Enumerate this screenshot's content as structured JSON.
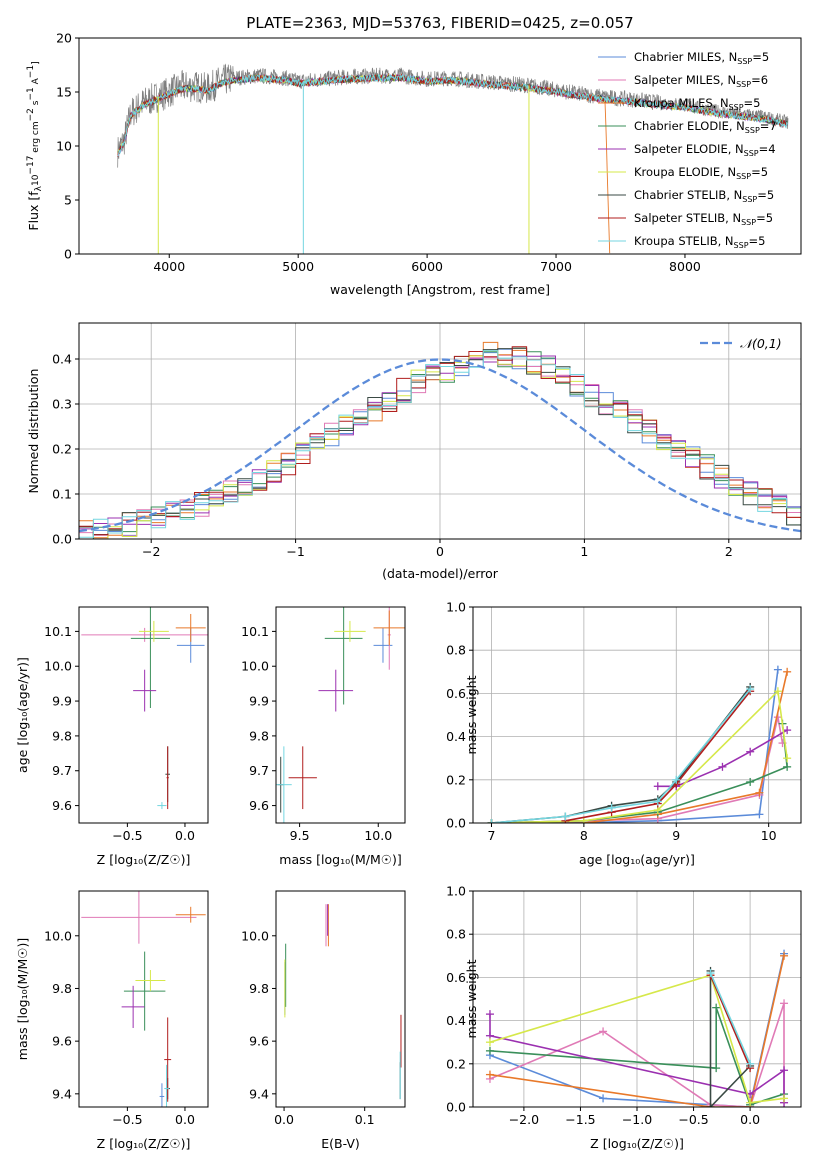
{
  "page_title": "PLATE=2363, MJD=53763, FIBERID=0425, z=0.057",
  "colors": {
    "Chabrier MILES": "#5b8bd9",
    "Salpeter MILES": "#e07ab6",
    "Kroupa MILES": "#e8792a",
    "Chabrier ELODIE": "#3a8f5a",
    "Salpeter ELODIE": "#9b30b0",
    "Kroupa ELODIE": "#d6e84a",
    "Chabrier STELIB": "#3a4a44",
    "Salpeter STELIB": "#b01e1e",
    "Kroupa STELIB": "#74d6e0",
    "data": "#7f7f7f",
    "grid": "#b0b0b0"
  },
  "legend_spectrum": [
    {
      "name": "Chabrier MILES",
      "n": "5"
    },
    {
      "name": "Salpeter MILES",
      "n": "6"
    },
    {
      "name": "Kroupa MILES",
      "n": "5"
    },
    {
      "name": "Chabrier ELODIE",
      "n": "7"
    },
    {
      "name": "Salpeter ELODIE",
      "n": "4"
    },
    {
      "name": "Kroupa ELODIE",
      "n": "5"
    },
    {
      "name": "Chabrier STELIB",
      "n": "5"
    },
    {
      "name": "Salpeter STELIB",
      "n": "5"
    },
    {
      "name": "Kroupa STELIB",
      "n": "5"
    }
  ],
  "legend_prefix_text": "N",
  "legend_sub_text": "SSP",
  "chart_data": [
    {
      "id": "spectrum",
      "type": "line",
      "title": "PLATE=2363, MJD=53763, FIBERID=0425, z=0.057",
      "xlabel": "wavelength [Angstrom, rest frame]",
      "ylabel": "Flux [f_λ 10^-17 erg cm^-2 s^-1 A^-1]",
      "xlim": [
        3300,
        8900
      ],
      "ylim": [
        0,
        20
      ],
      "xticks": [
        4000,
        5000,
        6000,
        7000,
        8000
      ],
      "yticks": [
        0,
        5,
        10,
        15,
        20
      ],
      "grid": false,
      "legend_position": "top-right",
      "continuum": {
        "x": [
          3600,
          3650,
          3700,
          3800,
          3900,
          4000,
          4100,
          4200,
          4300,
          4400,
          4500,
          4700,
          4900,
          5000,
          5200,
          5400,
          5600,
          5800,
          6000,
          6200,
          6400,
          6600,
          6800,
          7000,
          7200,
          7400,
          7600,
          7800,
          8000,
          8200,
          8400,
          8600,
          8800
        ],
        "y": [
          9.5,
          10.5,
          13.0,
          14.0,
          14.5,
          15.0,
          15.5,
          15.5,
          15.3,
          16.0,
          16.3,
          16.5,
          16.3,
          16.0,
          16.2,
          16.4,
          16.5,
          16.5,
          16.2,
          16.3,
          16.0,
          15.8,
          15.6,
          15.2,
          14.8,
          14.5,
          14.3,
          14.0,
          13.8,
          13.3,
          13.0,
          12.7,
          12.2
        ]
      }
    },
    {
      "id": "residuals",
      "type": "bar",
      "xlabel": "(data-model)/error",
      "ylabel": "Normed distribution",
      "xlim": [
        -2.5,
        2.5
      ],
      "ylim": [
        0,
        0.48
      ],
      "xticks": [
        -2,
        -1,
        0,
        1,
        2
      ],
      "yticks": [
        0.0,
        0.1,
        0.2,
        0.3,
        0.4
      ],
      "grid": true,
      "legend": [
        {
          "name": "𝒩(0,1)"
        }
      ],
      "legend_position": "top-right",
      "bins": {
        "start": -2.5,
        "width": 0.1,
        "count": 50
      },
      "histogram_shape": [
        0.018,
        0.022,
        0.027,
        0.033,
        0.04,
        0.048,
        0.057,
        0.066,
        0.078,
        0.09,
        0.104,
        0.118,
        0.135,
        0.152,
        0.17,
        0.19,
        0.21,
        0.23,
        0.25,
        0.27,
        0.29,
        0.31,
        0.33,
        0.35,
        0.365,
        0.375,
        0.39,
        0.4,
        0.41,
        0.41,
        0.405,
        0.39,
        0.38,
        0.36,
        0.34,
        0.32,
        0.3,
        0.28,
        0.26,
        0.24,
        0.22,
        0.2,
        0.18,
        0.16,
        0.14,
        0.12,
        0.1,
        0.085,
        0.07,
        0.055
      ]
    },
    {
      "id": "age_vs_Z",
      "type": "scatter",
      "xlabel": "Z [log10(Z/Z_sun)]",
      "ylabel": "age [log10(age/yr)]",
      "xlim": [
        -0.92,
        0.2
      ],
      "ylim": [
        9.55,
        10.17
      ],
      "xticks": [
        -0.5,
        0.0
      ],
      "yticks": [
        9.6,
        9.7,
        9.8,
        9.9,
        10.0,
        10.1
      ],
      "grid": false,
      "points": [
        {
          "series": "Chabrier MILES",
          "x": 0.05,
          "y": 10.06,
          "xerr": 0.12,
          "yerr": 0.05
        },
        {
          "series": "Salpeter MILES",
          "x": -0.35,
          "y": 10.09,
          "xerr": 0.55,
          "yerr": 0.02
        },
        {
          "series": "Kroupa MILES",
          "x": 0.05,
          "y": 10.11,
          "xerr": 0.13,
          "yerr": 0.04
        },
        {
          "series": "Chabrier ELODIE",
          "x": -0.3,
          "y": 10.08,
          "xerr": 0.17,
          "yerr": 0.2
        },
        {
          "series": "Salpeter ELODIE",
          "x": -0.35,
          "y": 9.93,
          "xerr": 0.1,
          "yerr": 0.06
        },
        {
          "series": "Kroupa ELODIE",
          "x": -0.27,
          "y": 10.1,
          "xerr": 0.13,
          "yerr": 0.03
        },
        {
          "series": "Chabrier STELIB",
          "x": -0.15,
          "y": 9.69,
          "xerr": 0.02,
          "yerr": 0.08
        },
        {
          "series": "Salpeter STELIB",
          "x": -0.15,
          "y": 9.68,
          "xerr": 0.01,
          "yerr": 0.09
        },
        {
          "series": "Kroupa STELIB",
          "x": -0.2,
          "y": 9.6,
          "xerr": 0.04,
          "yerr": 0.01
        }
      ]
    },
    {
      "id": "age_vs_mass",
      "type": "scatter",
      "xlabel": "mass [log10(M/M_sun)]",
      "ylabel": "",
      "xlim": [
        9.35,
        10.17
      ],
      "ylim": [
        9.55,
        10.17
      ],
      "xticks": [
        9.5,
        10.0
      ],
      "yticks": [
        9.6,
        9.7,
        9.8,
        9.9,
        10.0,
        10.1
      ],
      "grid": false,
      "points": [
        {
          "series": "Chabrier MILES",
          "x": 10.03,
          "y": 10.06,
          "xerr": 0.06,
          "yerr": 0.05
        },
        {
          "series": "Salpeter MILES",
          "x": 10.07,
          "y": 10.09,
          "xerr": 0.01,
          "yerr": 0.1
        },
        {
          "series": "Kroupa MILES",
          "x": 10.07,
          "y": 10.11,
          "xerr": 0.1,
          "yerr": 0.05
        },
        {
          "series": "Chabrier ELODIE",
          "x": 9.78,
          "y": 10.08,
          "xerr": 0.12,
          "yerr": 0.19
        },
        {
          "series": "Salpeter ELODIE",
          "x": 9.73,
          "y": 9.93,
          "xerr": 0.11,
          "yerr": 0.06
        },
        {
          "series": "Kroupa ELODIE",
          "x": 9.82,
          "y": 10.1,
          "xerr": 0.1,
          "yerr": 0.03
        },
        {
          "series": "Chabrier STELIB",
          "x": 9.38,
          "y": 9.66,
          "xerr": 0.02,
          "yerr": 0.08
        },
        {
          "series": "Salpeter STELIB",
          "x": 9.52,
          "y": 9.68,
          "xerr": 0.09,
          "yerr": 0.09
        },
        {
          "series": "Kroupa STELIB",
          "x": 9.4,
          "y": 9.66,
          "xerr": 0.05,
          "yerr": 0.11
        }
      ]
    },
    {
      "id": "mass_weight_vs_age",
      "type": "line",
      "xlabel": "age [log10(age/yr)]",
      "ylabel": "mass weight",
      "xlim": [
        6.8,
        10.35
      ],
      "ylim": [
        0,
        1.0
      ],
      "xticks": [
        7,
        8,
        9,
        10
      ],
      "yticks": [
        0.0,
        0.2,
        0.4,
        0.6,
        0.8,
        1.0
      ],
      "grid": true,
      "series": [
        {
          "name": "Chabrier MILES",
          "x": [
            7.0,
            7.8,
            8.8,
            9.9,
            10.1
          ],
          "y": [
            0.0,
            0.0,
            0.01,
            0.04,
            0.71
          ]
        },
        {
          "name": "Salpeter MILES",
          "x": [
            7.0,
            8.0,
            8.8,
            9.9,
            10.1,
            10.15
          ],
          "y": [
            0.0,
            0.01,
            0.02,
            0.13,
            0.49,
            0.37
          ]
        },
        {
          "name": "Kroupa MILES",
          "x": [
            7.0,
            8.0,
            8.8,
            9.9,
            10.2
          ],
          "y": [
            0.0,
            0.0,
            0.04,
            0.14,
            0.7
          ]
        },
        {
          "name": "Chabrier ELODIE",
          "x": [
            7.0,
            8.0,
            8.8,
            9.8,
            10.2,
            10.15
          ],
          "y": [
            0.0,
            0.01,
            0.05,
            0.19,
            0.26,
            0.46
          ]
        },
        {
          "name": "Salpeter ELODIE",
          "x": [
            8.8,
            9.0,
            9.5,
            9.8,
            10.2
          ],
          "y": [
            0.17,
            0.17,
            0.26,
            0.33,
            0.43
          ]
        },
        {
          "name": "Kroupa ELODIE",
          "x": [
            7.0,
            8.0,
            8.8,
            10.1,
            10.2
          ],
          "y": [
            0.0,
            0.01,
            0.06,
            0.61,
            0.3
          ]
        },
        {
          "name": "Chabrier STELIB",
          "x": [
            7.0,
            7.8,
            8.3,
            8.8,
            9.0,
            9.8
          ],
          "y": [
            0.0,
            0.03,
            0.08,
            0.11,
            0.19,
            0.63
          ]
        },
        {
          "name": "Salpeter STELIB",
          "x": [
            7.8,
            8.3,
            8.8,
            9.0,
            9.8
          ],
          "y": [
            0.01,
            0.05,
            0.09,
            0.18,
            0.61
          ]
        },
        {
          "name": "Kroupa STELIB",
          "x": [
            7.0,
            7.8,
            8.3,
            8.8,
            9.0,
            9.8
          ],
          "y": [
            0.0,
            0.03,
            0.07,
            0.1,
            0.2,
            0.62
          ]
        }
      ]
    },
    {
      "id": "mass_vs_Z",
      "type": "scatter",
      "xlabel": "Z [log10(Z/Z_sun)]",
      "ylabel": "mass [log10(M/M_sun)]",
      "xlim": [
        -0.92,
        0.2
      ],
      "ylim": [
        9.35,
        10.17
      ],
      "xticks": [
        -0.5,
        0.0
      ],
      "yticks": [
        9.4,
        9.6,
        9.8,
        10.0
      ],
      "grid": false,
      "points": [
        {
          "series": "Chabrier MILES",
          "x": -0.2,
          "y": 9.39,
          "xerr": 0.02,
          "yerr": 0.05
        },
        {
          "series": "Salpeter MILES",
          "x": -0.4,
          "y": 10.07,
          "xerr": 0.5,
          "yerr": 0.1
        },
        {
          "series": "Kroupa MILES",
          "x": 0.05,
          "y": 10.08,
          "xerr": 0.13,
          "yerr": 0.03
        },
        {
          "series": "Chabrier ELODIE",
          "x": -0.35,
          "y": 9.79,
          "xerr": 0.18,
          "yerr": 0.15
        },
        {
          "series": "Salpeter ELODIE",
          "x": -0.45,
          "y": 9.73,
          "xerr": 0.1,
          "yerr": 0.08
        },
        {
          "series": "Kroupa ELODIE",
          "x": -0.3,
          "y": 9.83,
          "xerr": 0.13,
          "yerr": 0.04
        },
        {
          "series": "Chabrier STELIB",
          "x": -0.15,
          "y": 9.42,
          "xerr": 0.02,
          "yerr": 0.04
        },
        {
          "series": "Salpeter STELIB",
          "x": -0.15,
          "y": 9.53,
          "xerr": 0.03,
          "yerr": 0.16
        },
        {
          "series": "Kroupa STELIB",
          "x": -0.16,
          "y": 9.42,
          "xerr": 0.02,
          "yerr": 0.09
        }
      ]
    },
    {
      "id": "mass_vs_EBV",
      "type": "scatter",
      "xlabel": "E(B-V)",
      "ylabel": "",
      "xlim": [
        -0.01,
        0.15
      ],
      "ylim": [
        9.35,
        10.17
      ],
      "xticks": [
        0.0,
        0.1
      ],
      "yticks": [
        9.4,
        9.6,
        9.8,
        10.0
      ],
      "grid": false,
      "points": [
        {
          "series": "Chabrier MILES",
          "x": 0.001,
          "y": 9.8,
          "xerr": 0,
          "yerr": 0.1
        },
        {
          "series": "Salpeter MILES",
          "x": 0.052,
          "y": 10.04,
          "xerr": 0,
          "yerr": 0.08
        },
        {
          "series": "Kroupa MILES",
          "x": 0.055,
          "y": 10.04,
          "xerr": 0,
          "yerr": 0.08
        },
        {
          "series": "Chabrier ELODIE",
          "x": 0.002,
          "y": 9.85,
          "xerr": 0,
          "yerr": 0.12
        },
        {
          "series": "Salpeter ELODIE",
          "x": 0.054,
          "y": 10.06,
          "xerr": 0,
          "yerr": 0.06
        },
        {
          "series": "Kroupa ELODIE",
          "x": 0.001,
          "y": 9.8,
          "xerr": 0,
          "yerr": 0.11
        },
        {
          "series": "Chabrier STELIB",
          "x": 0.144,
          "y": 9.45,
          "xerr": 0,
          "yerr": 0.07
        },
        {
          "series": "Salpeter STELIB",
          "x": 0.145,
          "y": 9.6,
          "xerr": 0,
          "yerr": 0.1
        },
        {
          "series": "Kroupa STELIB",
          "x": 0.144,
          "y": 9.47,
          "xerr": 0,
          "yerr": 0.09
        }
      ]
    },
    {
      "id": "mass_weight_vs_Z",
      "type": "line",
      "xlabel": "Z [log10(Z/Z_sun)]",
      "ylabel": "mass weight",
      "xlim": [
        -2.45,
        0.45
      ],
      "ylim": [
        0,
        1.0
      ],
      "xticks": [
        -2.0,
        -1.5,
        -1.0,
        -0.5,
        0.0
      ],
      "yticks": [
        0.0,
        0.2,
        0.4,
        0.6,
        0.8,
        1.0
      ],
      "grid": true,
      "series": [
        {
          "name": "Chabrier MILES",
          "x": [
            -2.3,
            -1.3,
            0.0,
            0.0,
            0.3
          ],
          "y": [
            0.24,
            0.04,
            0.0,
            0.01,
            0.71
          ]
        },
        {
          "name": "Salpeter MILES",
          "x": [
            -2.3,
            -1.3,
            -0.35,
            0.0,
            0.3,
            0.3
          ],
          "y": [
            0.13,
            0.35,
            0.01,
            0.0,
            0.48,
            0.02
          ]
        },
        {
          "name": "Kroupa MILES",
          "x": [
            -2.3,
            -0.35,
            0.0,
            0.3
          ],
          "y": [
            0.15,
            0.0,
            0.0,
            0.7
          ]
        },
        {
          "name": "Chabrier ELODIE",
          "x": [
            -2.3,
            -0.3,
            -0.3,
            0.0,
            0.3
          ],
          "y": [
            0.26,
            0.18,
            0.46,
            0.01,
            0.06
          ]
        },
        {
          "name": "Salpeter ELODIE",
          "x": [
            -2.3,
            -2.3,
            0.0,
            0.3,
            0.3
          ],
          "y": [
            0.43,
            0.33,
            0.06,
            0.17,
            0.02
          ]
        },
        {
          "name": "Kroupa ELODIE",
          "x": [
            -2.3,
            -0.35,
            0.0,
            0.3
          ],
          "y": [
            0.3,
            0.61,
            0.02,
            0.04
          ]
        },
        {
          "name": "Chabrier STELIB",
          "x": [
            -0.35,
            -0.35,
            0.0
          ],
          "y": [
            0.63,
            0.0,
            0.19
          ]
        },
        {
          "name": "Salpeter STELIB",
          "x": [
            -0.35,
            0.0
          ],
          "y": [
            0.61,
            0.18
          ]
        },
        {
          "name": "Kroupa STELIB",
          "x": [
            -0.35,
            0.0
          ],
          "y": [
            0.62,
            0.2
          ]
        }
      ]
    }
  ]
}
